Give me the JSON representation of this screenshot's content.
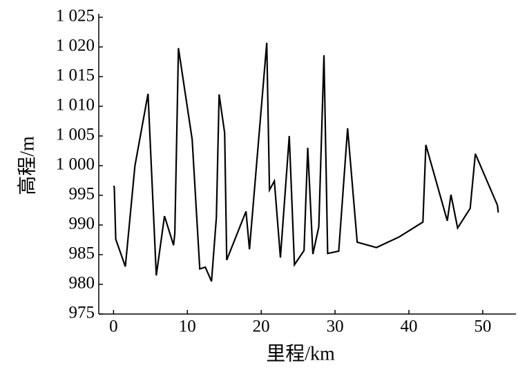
{
  "chart_data": {
    "type": "line",
    "x_label": "里程/km",
    "y_label": "高程/m",
    "xlim": [
      -2,
      54.5
    ],
    "ylim": [
      975,
      1025
    ],
    "xticks": [
      0,
      10,
      20,
      30,
      40,
      50
    ],
    "yticks": [
      975,
      980,
      985,
      990,
      995,
      {
        "value": 1000,
        "label": "1 000"
      },
      {
        "value": 1005,
        "label": "1 005"
      },
      {
        "value": 1010,
        "label": "1 010"
      },
      {
        "value": 1015,
        "label": "1 015"
      },
      {
        "value": 1020,
        "label": "1 020"
      },
      {
        "value": 1025,
        "label": "1 025"
      }
    ],
    "series": [
      {
        "color": "#000000",
        "x": [
          0,
          0.1,
          0.3,
          1.6,
          2.9,
          4.67,
          5.79,
          6.9,
          8.13,
          8.3,
          8.79,
          10.65,
          11.68,
          12.43,
          13.27,
          13.93,
          14.3,
          15.05,
          15.33,
          17.94,
          18.41,
          20.75,
          21.12,
          21.78,
          22.6,
          23.8,
          24.5,
          25.8,
          26.3,
          27.0,
          27.8,
          28.5,
          29.0,
          30.5,
          31.7,
          33.0,
          35.6,
          38.7,
          41.9,
          42.3,
          45.2,
          45.7,
          46.6,
          48.3,
          49.0,
          52.0,
          52.1
        ],
        "values": [
          996.6,
          996.4,
          987.6,
          983.0,
          1000.0,
          1012.1,
          981.5,
          991.5,
          986.6,
          988.6,
          1019.8,
          1004.4,
          982.6,
          982.9,
          980.5,
          991.3,
          1012.0,
          1005.5,
          984.1,
          992.3,
          985.9,
          1020.7,
          995.9,
          997.4,
          984.5,
          1005.0,
          983.3,
          985.7,
          1003.0,
          985.1,
          989.7,
          1018.6,
          985.2,
          985.6,
          1006.3,
          987.1,
          986.2,
          988.0,
          990.5,
          1003.5,
          990.7,
          995.1,
          989.5,
          992.8,
          1002.0,
          993.3,
          992.1
        ]
      }
    ]
  }
}
